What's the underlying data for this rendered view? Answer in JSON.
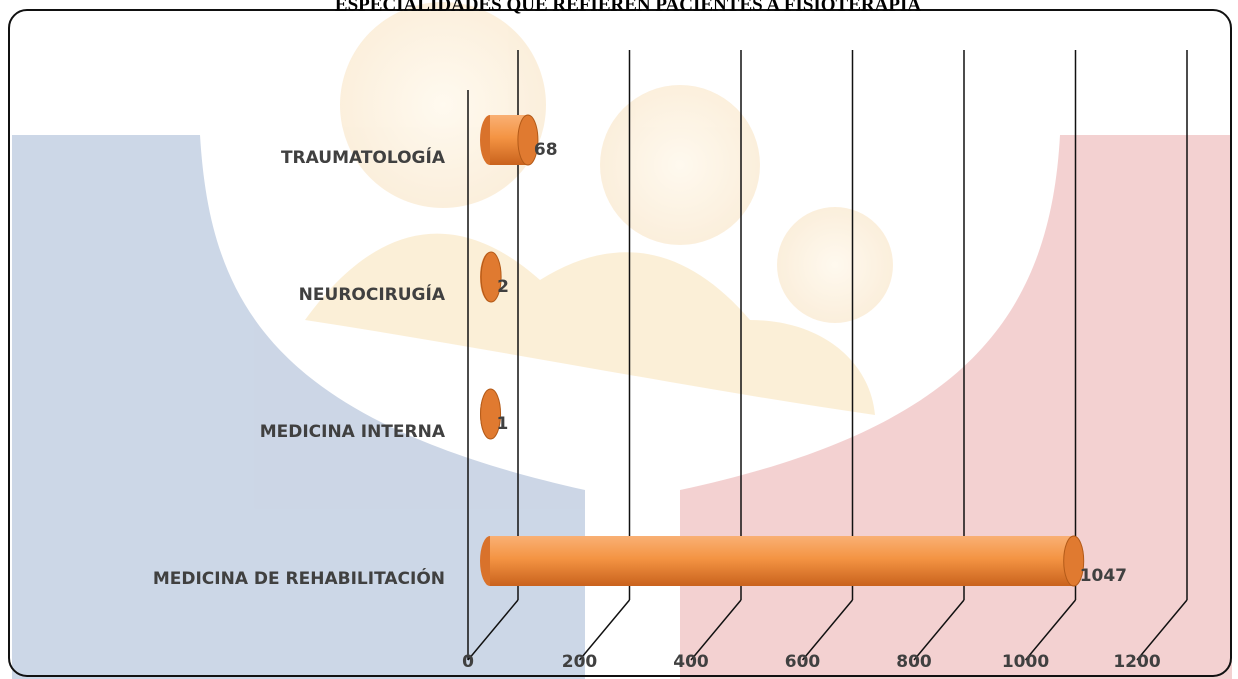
{
  "chart_data": {
    "type": "bar3d",
    "orientation": "horizontal",
    "title": "ESPECIALIDADES QUE REFIEREN PACIENTES A FISIOTERAPIA",
    "categories": [
      "TRAUMATOLOGÍA",
      "NEUROCIRUGÍA",
      "MEDICINA INTERNA",
      "MEDICINA DE REHABILITACIÓN"
    ],
    "values": [
      68,
      2,
      1,
      1047
    ],
    "color": "#f28a3c",
    "xlim": [
      0,
      1200
    ],
    "xticks": [
      0,
      200,
      400,
      600,
      800,
      1000,
      1200
    ],
    "grid": true
  }
}
